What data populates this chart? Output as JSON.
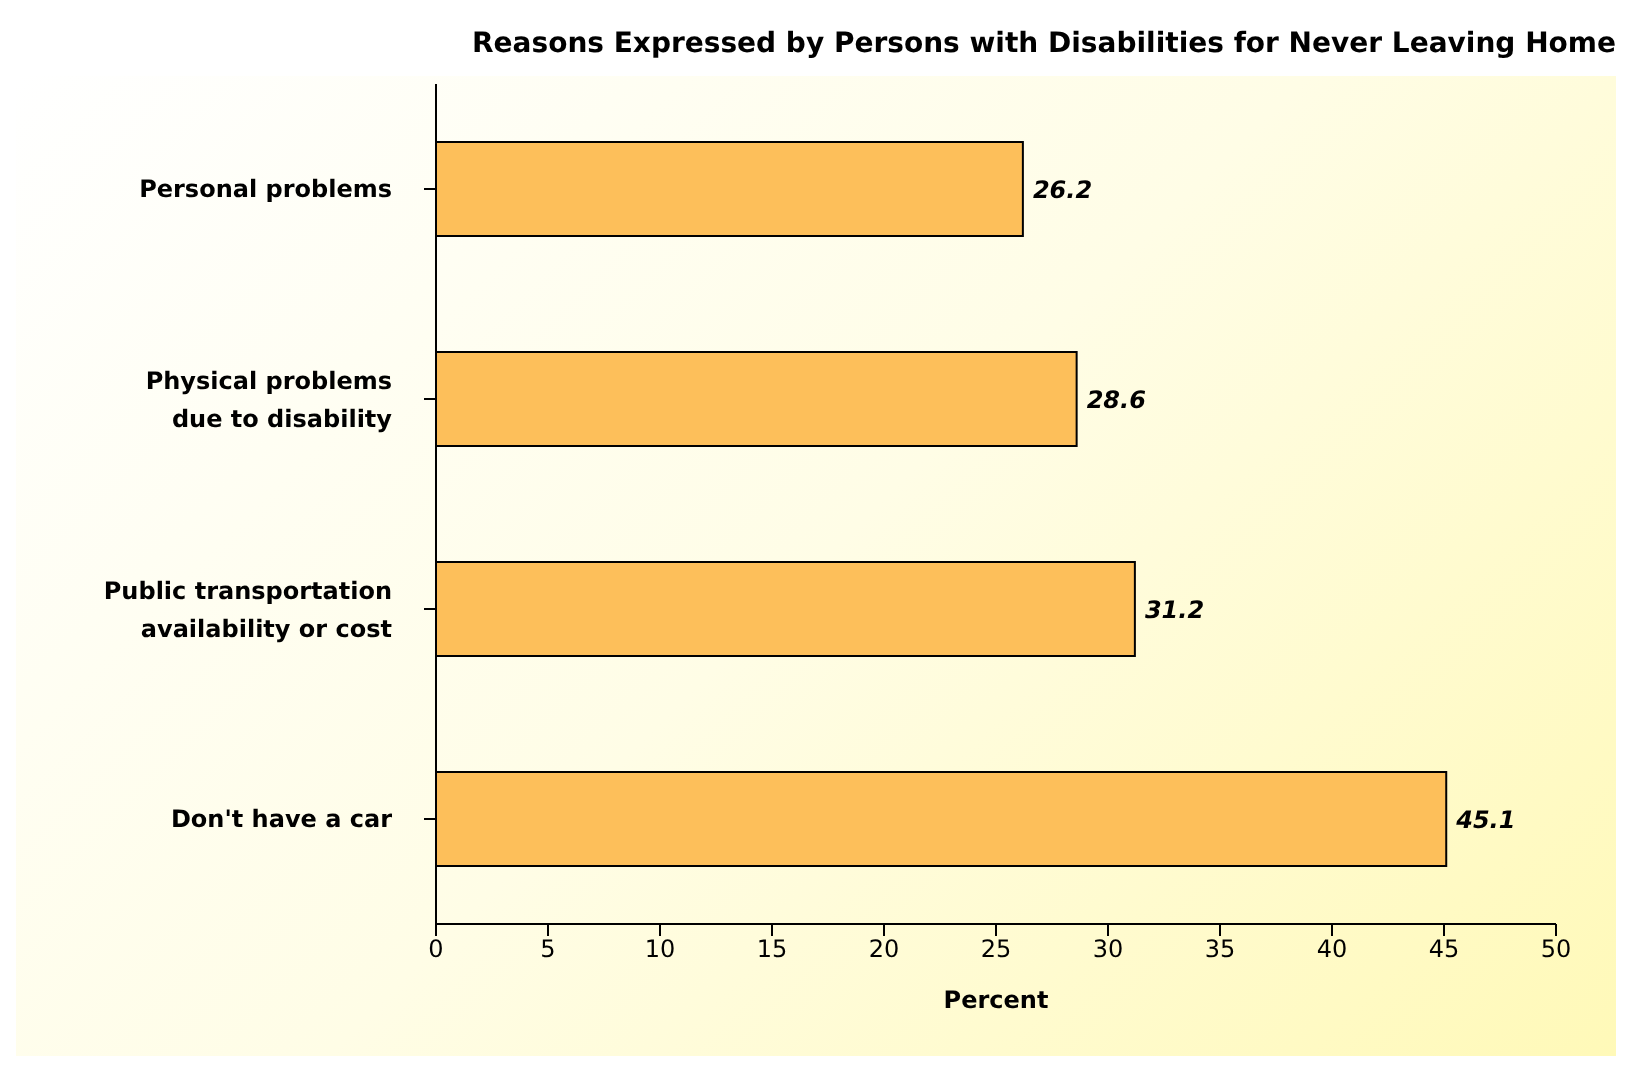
{
  "chart_data": {
    "type": "bar",
    "orientation": "horizontal",
    "title": "Reasons Expressed by Persons with Disabilities for Never Leaving Home",
    "categories": [
      "Personal problems",
      "Physical problems due to disability",
      "Public transportation availability or cost",
      "Don't have a car"
    ],
    "values": [
      26.2,
      28.6,
      31.2,
      45.1
    ],
    "color": "#fdbf5a",
    "xlabel": "Percent",
    "xlim": [
      0,
      50
    ],
    "xticks": [
      0,
      5,
      10,
      15,
      20,
      25,
      30,
      35,
      40,
      45,
      50
    ],
    "data_labels": true,
    "grid": false,
    "legend": false
  }
}
